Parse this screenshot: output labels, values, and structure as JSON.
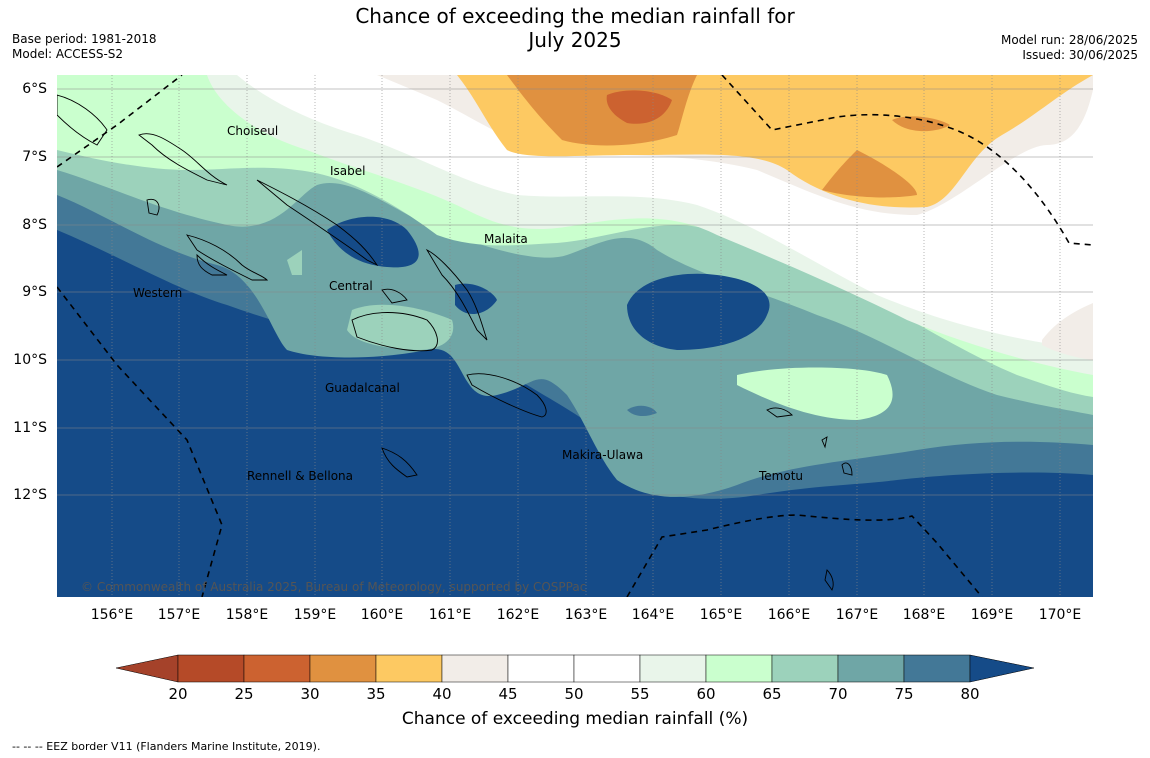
{
  "title_line1": "Chance of exceeding the median rainfall for",
  "title_line2": "July 2025",
  "base_period": "Base period: 1981-2018",
  "model": "Model: ACCESS-S2",
  "model_run": "Model run: 28/06/2025",
  "issued": "Issued: 30/06/2025",
  "regions": [
    "Choiseul",
    "Isabel",
    "Malaita",
    "Central",
    "Western",
    "Guadalcanal",
    "Makira-Ulawa",
    "Rennell & Bellona",
    "Temotu"
  ],
  "copyright": "© Commonwealth of Australia 2025, Bureau of Meteorology, supported by COSPPac",
  "lon_labels": [
    "156°E",
    "157°E",
    "158°E",
    "159°E",
    "160°E",
    "161°E",
    "162°E",
    "163°E",
    "164°E",
    "165°E",
    "166°E",
    "167°E",
    "168°E",
    "169°E",
    "170°E"
  ],
  "lat_labels": [
    "6°S",
    "7°S",
    "8°S",
    "9°S",
    "10°S",
    "11°S",
    "12°S"
  ],
  "colorbar": {
    "title": "Chance of exceeding median rainfall (%)",
    "ticks": [
      "20",
      "25",
      "30",
      "35",
      "40",
      "45",
      "50",
      "55",
      "60",
      "65",
      "70",
      "75",
      "80"
    ],
    "colors": [
      "#a5422a",
      "#b54a28",
      "#cc6230",
      "#e09140",
      "#fdc962",
      "#f2ede8",
      "#ffffff",
      "#ffffff",
      "#e9f5ea",
      "#caffce",
      "#9cd2bb",
      "#6fa6a6",
      "#437897",
      "#154b88"
    ]
  },
  "footnote": "--  --  -- EEZ border V11 (Flanders Marine Institute, 2019)."
}
